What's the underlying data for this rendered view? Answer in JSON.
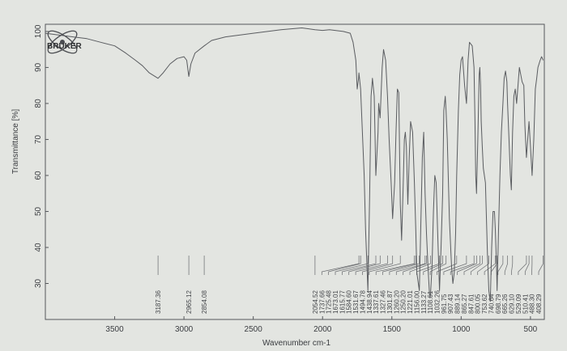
{
  "logo": {
    "name": "BRUKER"
  },
  "chart_data": {
    "type": "line",
    "title": "",
    "xlabel": "Wavenumber cm-1",
    "ylabel": "Transmittance [%]",
    "xlim": [
      4000,
      400
    ],
    "xaxis_reversed": true,
    "ylim": [
      20,
      102
    ],
    "x_ticks": [
      3500,
      3000,
      2500,
      2000,
      1500,
      1000,
      500
    ],
    "y_ticks": [
      30,
      40,
      50,
      60,
      70,
      80,
      90,
      100
    ],
    "grid": false,
    "line_color": "#5a5c60",
    "series": [
      {
        "values": [
          [
            4000,
            99.5
          ],
          [
            3900,
            99
          ],
          [
            3800,
            98.5
          ],
          [
            3700,
            98
          ],
          [
            3600,
            97
          ],
          [
            3500,
            96
          ],
          [
            3420,
            94
          ],
          [
            3350,
            92
          ],
          [
            3300,
            90.5
          ],
          [
            3250,
            88.5
          ],
          [
            3187.36,
            87
          ],
          [
            3150,
            88.5
          ],
          [
            3100,
            91
          ],
          [
            3050,
            92.5
          ],
          [
            3000,
            93
          ],
          [
            2980,
            92
          ],
          [
            2965.12,
            87.5
          ],
          [
            2950,
            91
          ],
          [
            2920,
            94
          ],
          [
            2854.08,
            96
          ],
          [
            2800,
            97.5
          ],
          [
            2700,
            98.5
          ],
          [
            2500,
            99.5
          ],
          [
            2300,
            100.5
          ],
          [
            2150,
            101
          ],
          [
            2054.52,
            100.5
          ],
          [
            2000,
            100.3
          ],
          [
            1950,
            100.5
          ],
          [
            1850,
            100
          ],
          [
            1800,
            99.5
          ],
          [
            1780,
            97
          ],
          [
            1760,
            92
          ],
          [
            1750,
            84
          ],
          [
            1740,
            87
          ],
          [
            1737.66,
            88.5
          ],
          [
            1725.48,
            84
          ],
          [
            1700,
            60
          ],
          [
            1690,
            45
          ],
          [
            1673.01,
            28
          ],
          [
            1660,
            55
          ],
          [
            1650,
            82
          ],
          [
            1640,
            87
          ],
          [
            1627,
            82
          ],
          [
            1615.77,
            60
          ],
          [
            1600,
            72
          ],
          [
            1595,
            80
          ],
          [
            1584.6,
            76
          ],
          [
            1570,
            90
          ],
          [
            1560,
            95
          ],
          [
            1545,
            92
          ],
          [
            1531.67,
            82
          ],
          [
            1520,
            70
          ],
          [
            1505,
            58
          ],
          [
            1494.78,
            48
          ],
          [
            1480,
            58
          ],
          [
            1470,
            72
          ],
          [
            1460,
            84
          ],
          [
            1450,
            83
          ],
          [
            1438.94,
            52
          ],
          [
            1430,
            42
          ],
          [
            1420,
            55
          ],
          [
            1410,
            70
          ],
          [
            1403,
            72
          ],
          [
            1395,
            68
          ],
          [
            1385,
            52
          ],
          [
            1375,
            65
          ],
          [
            1365,
            75
          ],
          [
            1350,
            72
          ],
          [
            1337.61,
            58
          ],
          [
            1327.46,
            45
          ],
          [
            1320,
            33
          ],
          [
            1301.87,
            28
          ],
          [
            1290,
            48
          ],
          [
            1280,
            65
          ],
          [
            1270,
            72
          ],
          [
            1260.2,
            55
          ],
          [
            1250.2,
            44
          ],
          [
            1240,
            35
          ],
          [
            1230,
            28
          ],
          [
            1225,
            26
          ],
          [
            1221.01,
            27
          ],
          [
            1210,
            35
          ],
          [
            1200,
            50
          ],
          [
            1190,
            60
          ],
          [
            1180,
            58
          ],
          [
            1170,
            45
          ],
          [
            1156,
            28
          ],
          [
            1145,
            40
          ],
          [
            1133.27,
            55
          ],
          [
            1125,
            78
          ],
          [
            1115,
            82
          ],
          [
            1108.61,
            78
          ],
          [
            1100,
            70
          ],
          [
            1085,
            48
          ],
          [
            1070,
            35
          ],
          [
            1060,
            30
          ],
          [
            1050,
            33
          ],
          [
            1040,
            44
          ],
          [
            1032.26,
            60
          ],
          [
            1020,
            78
          ],
          [
            1010,
            88
          ],
          [
            1000,
            92
          ],
          [
            990,
            93
          ],
          [
            975,
            85
          ],
          [
            961.75,
            80
          ],
          [
            950,
            92
          ],
          [
            940,
            97
          ],
          [
            920,
            96
          ],
          [
            907.43,
            90
          ],
          [
            900,
            75
          ],
          [
            895,
            60
          ],
          [
            889.14,
            55
          ],
          [
            880,
            70
          ],
          [
            870,
            88
          ],
          [
            865.27,
            90
          ],
          [
            860,
            85
          ],
          [
            855,
            75
          ],
          [
            847.6,
            68
          ],
          [
            840,
            62
          ],
          [
            825,
            58
          ],
          [
            810,
            38
          ],
          [
            800.05,
            28
          ],
          [
            790,
            25
          ],
          [
            780,
            40
          ],
          [
            770,
            50
          ],
          [
            760,
            50
          ],
          [
            753.62,
            45
          ],
          [
            745,
            35
          ],
          [
            740.64,
            28
          ],
          [
            730,
            45
          ],
          [
            720,
            60
          ],
          [
            710,
            72
          ],
          [
            698.79,
            80
          ],
          [
            690,
            87
          ],
          [
            680,
            89
          ],
          [
            670,
            86
          ],
          [
            665.26,
            80
          ],
          [
            655,
            70
          ],
          [
            645,
            60
          ],
          [
            638,
            56
          ],
          [
            629.1,
            72
          ],
          [
            620,
            82
          ],
          [
            610,
            84
          ],
          [
            600,
            80
          ],
          [
            590,
            85
          ],
          [
            580,
            90
          ],
          [
            570,
            88
          ],
          [
            560,
            86
          ],
          [
            548,
            85
          ],
          [
            540,
            74
          ],
          [
            529.09,
            65
          ],
          [
            520,
            70
          ],
          [
            510.41,
            75
          ],
          [
            500,
            68
          ],
          [
            488.3,
            60
          ],
          [
            476,
            70
          ],
          [
            465,
            84
          ],
          [
            455,
            87
          ],
          [
            446,
            90
          ],
          [
            430,
            92
          ],
          [
            420,
            93
          ],
          [
            408.29,
            92
          ]
        ]
      }
    ],
    "peak_labels": [
      {
        "group": "left",
        "labels": [
          "3187.36",
          "2965.12",
          "2854.08"
        ],
        "x": [
          3187.36,
          2965.12,
          2854.08
        ]
      },
      {
        "group": "right",
        "labels": [
          "2054.52",
          "1737.66",
          "1725.48",
          "1673.01",
          "1615.77",
          "1584.60",
          "1531.67",
          "1494.78",
          "1438.94",
          "1337.61",
          "1327.46",
          "1301.87",
          "1260.20",
          "1250.20",
          "1221.01",
          "1156.00",
          "1133.27",
          "1108.61",
          "1032.26",
          "961.75",
          "907.43",
          "889.14",
          "865.27",
          "847.61",
          "800.05",
          "753.62",
          "740.64",
          "698.79",
          "665.26",
          "629.10",
          "529.09",
          "510.41",
          "488.30",
          "408.29"
        ],
        "x": [
          2054.52,
          1737.66,
          1725.48,
          1673.01,
          1615.77,
          1584.6,
          1531.67,
          1494.78,
          1438.94,
          1337.61,
          1327.46,
          1301.87,
          1260.2,
          1250.2,
          1221.01,
          1156.0,
          1133.27,
          1108.61,
          1032.26,
          961.75,
          907.43,
          889.14,
          865.27,
          847.61,
          800.05,
          753.62,
          740.64,
          698.79,
          665.26,
          629.1,
          529.09,
          510.41,
          488.3,
          408.29
        ]
      }
    ]
  }
}
